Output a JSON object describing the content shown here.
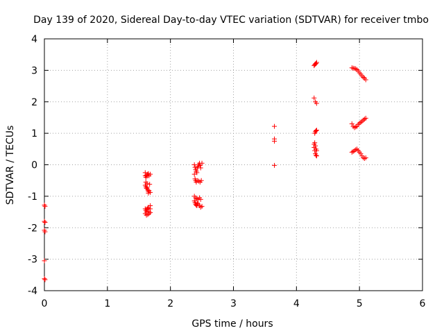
{
  "chart_data": {
    "type": "scatter",
    "title": "Day 139 of 2020, Sidereal Day-to-day VTEC variation (SDTVAR) for receiver tmbo",
    "xlabel": "GPS time / hours",
    "ylabel": "SDTVAR / TECUs",
    "xlim": [
      0,
      6
    ],
    "ylim": [
      -4,
      4
    ],
    "xticks": [
      "0",
      "1",
      "2",
      "3",
      "4",
      "5",
      "6"
    ],
    "yticks": [
      "-4",
      "-3",
      "-2",
      "-1",
      "0",
      "1",
      "2",
      "3",
      "4"
    ],
    "grid": true,
    "marker": "plus",
    "color": "#ff0000",
    "x": [
      0.0,
      0.01,
      0.0,
      0.01,
      0.0,
      0.01,
      0.0,
      0.0,
      0.01,
      1.6,
      1.61,
      1.62,
      1.63,
      1.64,
      1.65,
      1.66,
      1.68,
      1.6,
      1.61,
      1.62,
      1.63,
      1.64,
      1.65,
      1.66,
      1.68,
      1.6,
      1.61,
      1.62,
      1.63,
      1.64,
      1.65,
      1.66,
      1.68,
      1.6,
      1.62,
      1.64,
      1.66,
      1.68,
      1.6,
      1.61,
      1.63,
      1.65,
      1.67,
      1.68,
      2.38,
      2.39,
      2.4,
      2.41,
      2.42,
      2.43,
      2.44,
      2.45,
      2.46,
      2.47,
      2.48,
      2.5,
      2.38,
      2.39,
      2.4,
      2.41,
      2.43,
      2.45,
      2.47,
      2.49,
      2.38,
      2.39,
      2.4,
      2.41,
      2.42,
      2.43,
      2.44,
      2.46,
      2.48,
      2.5,
      2.38,
      2.4,
      2.42,
      2.44,
      2.46,
      2.48,
      3.65,
      3.65,
      3.65,
      3.65,
      4.28,
      4.29,
      4.3,
      4.31,
      4.32,
      4.28,
      4.3,
      4.32,
      4.29,
      4.3,
      4.31,
      4.32,
      4.28,
      4.29,
      4.3,
      4.31,
      4.32,
      4.28,
      4.29,
      4.3,
      4.31,
      4.32,
      4.88,
      4.9,
      4.92,
      4.94,
      4.96,
      4.98,
      5.0,
      5.02,
      5.04,
      5.06,
      5.08,
      5.1,
      4.88,
      4.9,
      4.92,
      4.94,
      4.96,
      4.98,
      5.0,
      5.02,
      5.04,
      5.06,
      5.08,
      5.1,
      4.88,
      4.9,
      4.92,
      4.94,
      4.96,
      4.98,
      5.0,
      5.02,
      5.04,
      5.06,
      5.08,
      5.1
    ],
    "y": [
      -1.28,
      -1.32,
      -1.8,
      -1.83,
      -2.08,
      -2.13,
      -3.05,
      -3.62,
      -3.65,
      -0.35,
      -0.4,
      -0.33,
      -0.36,
      -0.3,
      -0.28,
      -0.35,
      -0.3,
      -0.65,
      -0.7,
      -0.75,
      -0.72,
      -0.8,
      -0.85,
      -0.82,
      -0.88,
      -1.4,
      -1.45,
      -1.5,
      -1.42,
      -1.38,
      -1.35,
      -1.48,
      -1.4,
      -1.55,
      -1.6,
      -1.58,
      -1.55,
      -1.52,
      -0.25,
      -0.55,
      -0.6,
      -0.9,
      -0.62,
      -1.3,
      0.0,
      -0.08,
      -0.15,
      -0.2,
      -0.25,
      -0.1,
      -0.05,
      0.0,
      0.05,
      -0.02,
      -0.1,
      0.05,
      -0.3,
      -0.45,
      -0.5,
      -0.55,
      -0.5,
      -0.52,
      -0.55,
      -0.5,
      -1.15,
      -1.2,
      -1.25,
      -1.28,
      -1.3,
      -1.22,
      -1.25,
      -1.3,
      -1.35,
      -1.32,
      -1.0,
      -1.05,
      -1.08,
      -1.1,
      -1.05,
      -1.1,
      1.22,
      0.82,
      0.75,
      -0.02,
      3.15,
      3.18,
      3.2,
      3.22,
      3.25,
      2.12,
      2.0,
      1.95,
      1.0,
      1.05,
      1.08,
      1.1,
      0.65,
      0.7,
      0.6,
      0.5,
      0.45,
      0.55,
      0.45,
      0.35,
      0.3,
      0.28,
      3.08,
      3.07,
      3.06,
      3.05,
      3.02,
      2.98,
      2.92,
      2.88,
      2.82,
      2.78,
      2.75,
      2.7,
      1.3,
      1.22,
      1.18,
      1.2,
      1.22,
      1.28,
      1.32,
      1.35,
      1.38,
      1.42,
      1.45,
      1.48,
      0.4,
      0.42,
      0.45,
      0.48,
      0.5,
      0.45,
      0.4,
      0.35,
      0.28,
      0.22,
      0.2,
      0.22
    ]
  }
}
